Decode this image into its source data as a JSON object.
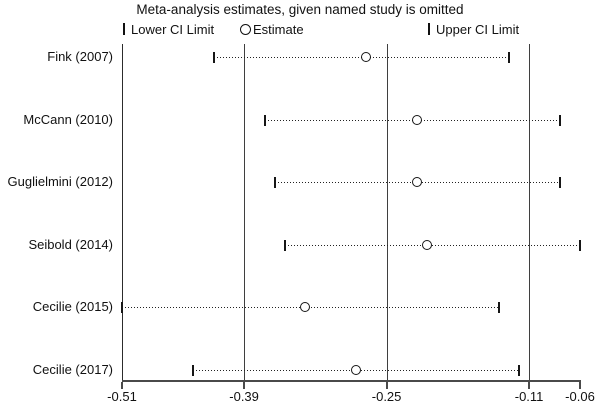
{
  "title": "Meta-analysis estimates, given named study is omitted",
  "legend": {
    "lower_label": "Lower CI Limit",
    "estimate_label": "Estimate",
    "upper_label": "Upper CI Limit"
  },
  "colors": {
    "background": "#ffffff",
    "line": "#3f3f3f",
    "text": "#111111",
    "marker_fill": "#ffffff",
    "marker_stroke": "#161616"
  },
  "chart_data": {
    "type": "scatter",
    "title": "Meta-analysis estimates, given named study is omitted",
    "categories": [
      "Fink (2007)",
      "McCann (2010)",
      "Guglielmini (2012)",
      "Seibold (2014)",
      "Cecilie (2015)",
      "Cecilie (2017)"
    ],
    "series": [
      {
        "name": "Lower CI Limit",
        "values": [
          -0.42,
          -0.37,
          -0.36,
          -0.35,
          -0.51,
          -0.44
        ]
      },
      {
        "name": "Estimate",
        "values": [
          -0.27,
          -0.22,
          -0.22,
          -0.21,
          -0.33,
          -0.28
        ]
      },
      {
        "name": "Upper CI Limit",
        "values": [
          -0.13,
          -0.08,
          -0.08,
          -0.06,
          -0.14,
          -0.12
        ]
      }
    ],
    "xlim": [
      -0.51,
      -0.06
    ],
    "x_ticks": [
      -0.51,
      -0.39,
      -0.25,
      -0.11,
      -0.06
    ],
    "x_tick_labels": [
      "-0.51",
      "-0.39",
      "-0.25",
      "-0.11",
      "-0.06"
    ],
    "ref_lines": [
      -0.39,
      -0.25,
      -0.11
    ],
    "grid": false,
    "legend_position": "top",
    "xlabel": "",
    "ylabel": ""
  }
}
